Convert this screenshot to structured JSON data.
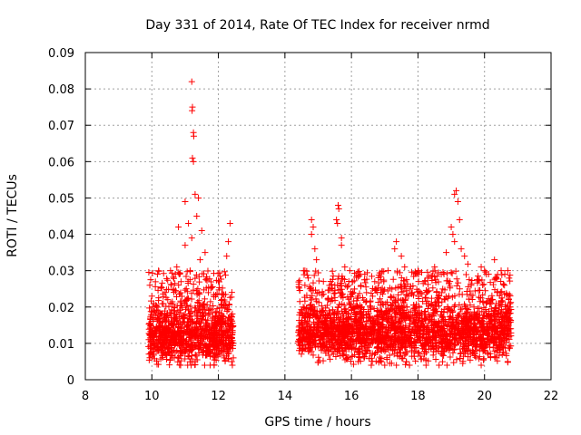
{
  "chart_data": {
    "type": "scatter",
    "title": "Day 331 of 2014, Rate Of TEC Index for receiver nrmd",
    "xlabel": "GPS time / hours",
    "ylabel": "ROTI / TECUs",
    "xlim": [
      8,
      22
    ],
    "ylim": [
      0,
      0.09
    ],
    "xticks": [
      "8",
      "10",
      "12",
      "14",
      "16",
      "18",
      "20",
      "22"
    ],
    "yticks": [
      "0",
      "0.01",
      "0.02",
      "0.03",
      "0.04",
      "0.05",
      "0.06",
      "0.07",
      "0.08",
      "0.09"
    ],
    "grid": true,
    "marker": "plus",
    "color": "#ff0000",
    "series": [
      {
        "name": "ROTI",
        "segments": [
          {
            "x_start": 9.9,
            "x_end": 12.45,
            "base": 0.012,
            "spread": 0.006
          },
          {
            "x_start": 14.4,
            "x_end": 20.8,
            "base": 0.013,
            "spread": 0.006
          }
        ],
        "points": [
          [
            11.2,
            0.082
          ],
          [
            11.22,
            0.075
          ],
          [
            11.21,
            0.074
          ],
          [
            11.25,
            0.068
          ],
          [
            11.26,
            0.067
          ],
          [
            11.22,
            0.061
          ],
          [
            11.25,
            0.06
          ],
          [
            11.3,
            0.051
          ],
          [
            11.4,
            0.05
          ],
          [
            11.0,
            0.049
          ],
          [
            11.35,
            0.045
          ],
          [
            11.1,
            0.043
          ],
          [
            10.8,
            0.042
          ],
          [
            11.5,
            0.041
          ],
          [
            12.35,
            0.043
          ],
          [
            12.3,
            0.038
          ],
          [
            12.25,
            0.034
          ],
          [
            10.75,
            0.031
          ],
          [
            11.0,
            0.037
          ],
          [
            11.2,
            0.039
          ],
          [
            11.6,
            0.035
          ],
          [
            11.45,
            0.033
          ],
          [
            11.15,
            0.03
          ],
          [
            10.4,
            0.024
          ],
          [
            10.0,
            0.023
          ],
          [
            12.45,
            0.006
          ],
          [
            12.4,
            0.005
          ],
          [
            12.42,
            0.004
          ],
          [
            11.3,
            0.005
          ],
          [
            14.8,
            0.044
          ],
          [
            14.85,
            0.042
          ],
          [
            14.8,
            0.04
          ],
          [
            14.9,
            0.036
          ],
          [
            14.95,
            0.033
          ],
          [
            15.6,
            0.048
          ],
          [
            15.62,
            0.047
          ],
          [
            15.55,
            0.044
          ],
          [
            15.58,
            0.043
          ],
          [
            15.7,
            0.039
          ],
          [
            15.7,
            0.037
          ],
          [
            15.8,
            0.031
          ],
          [
            15.5,
            0.026
          ],
          [
            15.95,
            0.03
          ],
          [
            16.05,
            0.024
          ],
          [
            14.6,
            0.03
          ],
          [
            14.7,
            0.028
          ],
          [
            14.75,
            0.025
          ],
          [
            14.55,
            0.02
          ],
          [
            16.4,
            0.029
          ],
          [
            16.7,
            0.027
          ],
          [
            17.1,
            0.03
          ],
          [
            17.3,
            0.036
          ],
          [
            17.35,
            0.038
          ],
          [
            17.5,
            0.034
          ],
          [
            17.6,
            0.031
          ],
          [
            18.0,
            0.03
          ],
          [
            18.2,
            0.027
          ],
          [
            18.5,
            0.031
          ],
          [
            19.0,
            0.042
          ],
          [
            19.05,
            0.04
          ],
          [
            19.1,
            0.051
          ],
          [
            19.15,
            0.052
          ],
          [
            19.2,
            0.049
          ],
          [
            19.25,
            0.044
          ],
          [
            19.1,
            0.038
          ],
          [
            19.3,
            0.036
          ],
          [
            19.4,
            0.034
          ],
          [
            18.85,
            0.035
          ],
          [
            18.7,
            0.029
          ],
          [
            19.6,
            0.026
          ],
          [
            19.9,
            0.031
          ],
          [
            20.0,
            0.03
          ],
          [
            20.3,
            0.033
          ],
          [
            20.35,
            0.028
          ],
          [
            20.5,
            0.03
          ],
          [
            20.7,
            0.03
          ],
          [
            20.6,
            0.026
          ],
          [
            20.75,
            0.017
          ],
          [
            16.2,
            0.005
          ],
          [
            17.0,
            0.004
          ],
          [
            19.9,
            0.004
          ],
          [
            20.7,
            0.005
          ],
          [
            14.5,
            0.008
          ]
        ]
      }
    ]
  }
}
